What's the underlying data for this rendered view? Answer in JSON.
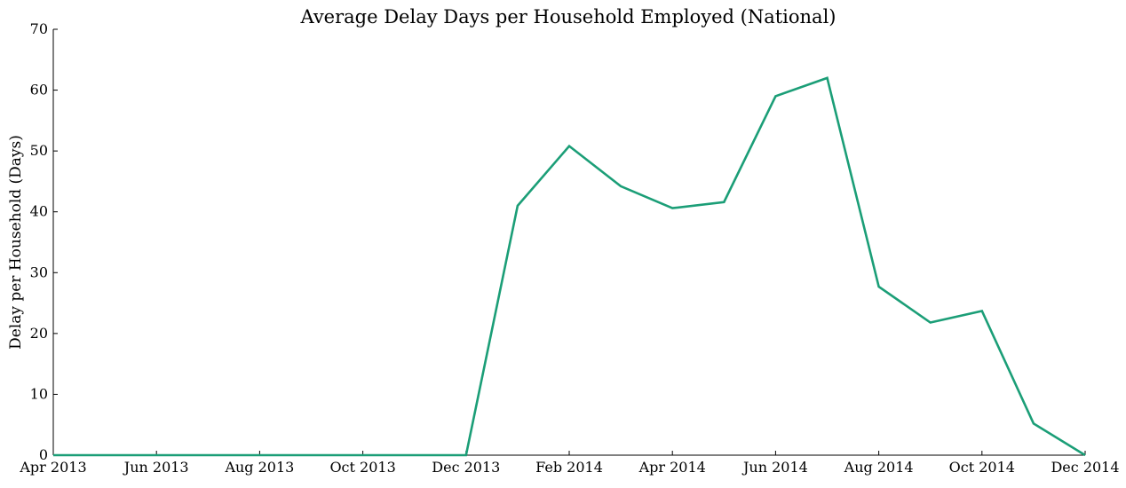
{
  "chart_data": {
    "type": "line",
    "title": "Average Delay Days per Household Employed (National)",
    "xlabel": "",
    "ylabel": "Delay per Household (Days)",
    "ylim": [
      0,
      70
    ],
    "y_ticks": [
      "0",
      "10",
      "20",
      "30",
      "40",
      "50",
      "60",
      "70"
    ],
    "x_tick_labels": [
      "Apr 2013",
      "Jun 2013",
      "Aug 2013",
      "Oct 2013",
      "Dec 2013",
      "Feb 2014",
      "Apr 2014",
      "Jun 2014",
      "Aug 2014",
      "Oct 2014",
      "Dec 2014"
    ],
    "x": [
      "Apr 2013",
      "May 2013",
      "Jun 2013",
      "Jul 2013",
      "Aug 2013",
      "Sep 2013",
      "Oct 2013",
      "Nov 2013",
      "Dec 2013",
      "Jan 2014",
      "Feb 2014",
      "Mar 2014",
      "Apr 2014",
      "May 2014",
      "Jun 2014",
      "Jul 2014",
      "Aug 2014",
      "Sep 2014",
      "Oct 2014",
      "Nov 2014",
      "Dec 2014"
    ],
    "series": [
      {
        "name": "",
        "color": "#1b9e77",
        "values": [
          0,
          0,
          0,
          0,
          0,
          0,
          0,
          0,
          0,
          41.0,
          50.8,
          44.2,
          40.6,
          41.6,
          59.0,
          62.0,
          27.7,
          21.8,
          23.7,
          5.2,
          0
        ]
      }
    ],
    "grid": false,
    "legend": "none",
    "spines": "left-bottom"
  }
}
